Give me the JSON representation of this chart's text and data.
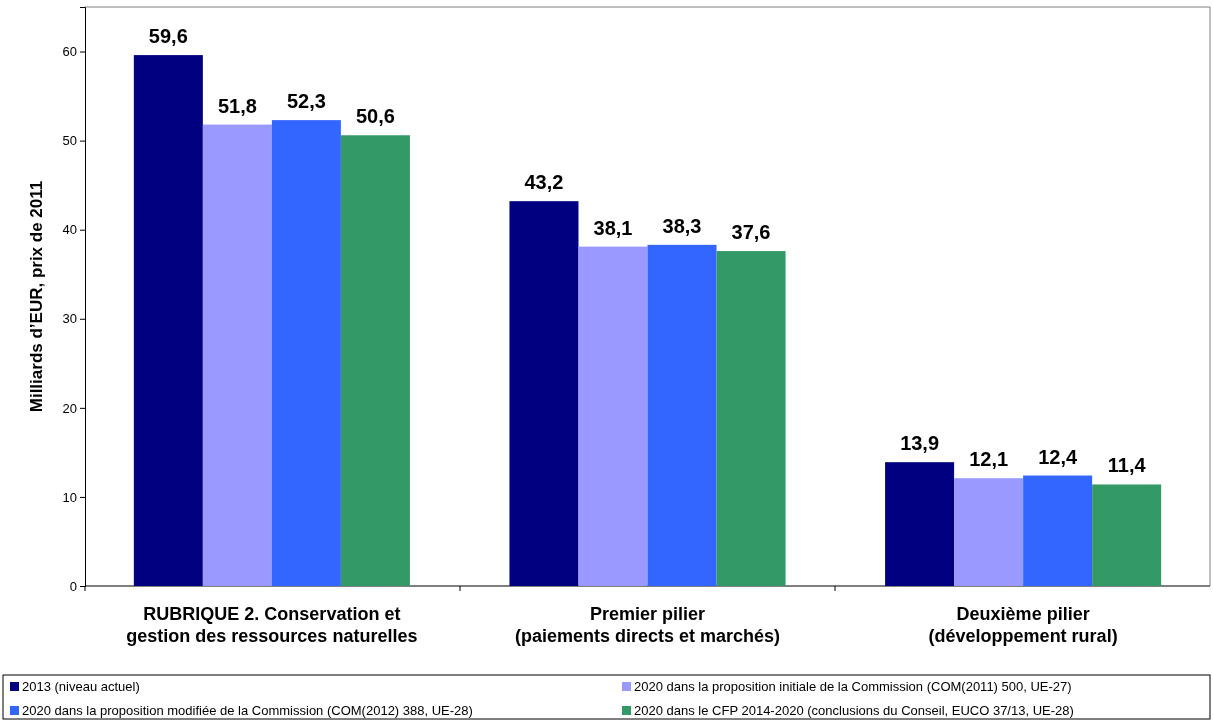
{
  "chart_data": {
    "type": "bar",
    "ylabel": "Milliards d’EUR, prix de 2011",
    "categories": [
      "RUBRIQUE 2. Conservation et\ngestion des ressources naturelles",
      "Premier pilier\n(paiements directs et marchés)",
      "Deuxième pilier\n(développement rural)"
    ],
    "series": [
      {
        "name": "2013 (niveau actuel)",
        "color": "#000080",
        "values": [
          59.6,
          43.2,
          13.9
        ],
        "value_labels": [
          "59,6",
          "43,2",
          "13,9"
        ]
      },
      {
        "name": "2020 dans la proposition initiale de la Commission (COM(2011) 500, UE-27)",
        "color": "#9999ff",
        "values": [
          51.8,
          38.1,
          12.1
        ],
        "value_labels": [
          "51,8",
          "38,1",
          "12,1"
        ]
      },
      {
        "name": "2020 dans la proposition modifiée de la Commission (COM(2012) 388, UE-28)",
        "color": "#3366ff",
        "values": [
          52.3,
          38.3,
          12.4
        ],
        "value_labels": [
          "52,3",
          "38,3",
          "12,4"
        ]
      },
      {
        "name": "2020 dans le CFP 2014-2020 (conclusions du Conseil, EUCO 37/13, UE-28)",
        "color": "#339966",
        "values": [
          50.6,
          37.6,
          11.4
        ],
        "value_labels": [
          "50,6",
          "37,6",
          "11,4"
        ]
      }
    ],
    "ylim": [
      0,
      65
    ],
    "yticks": [
      0,
      10,
      20,
      30,
      40,
      50,
      60
    ],
    "grid": false,
    "legend": "bottom"
  }
}
